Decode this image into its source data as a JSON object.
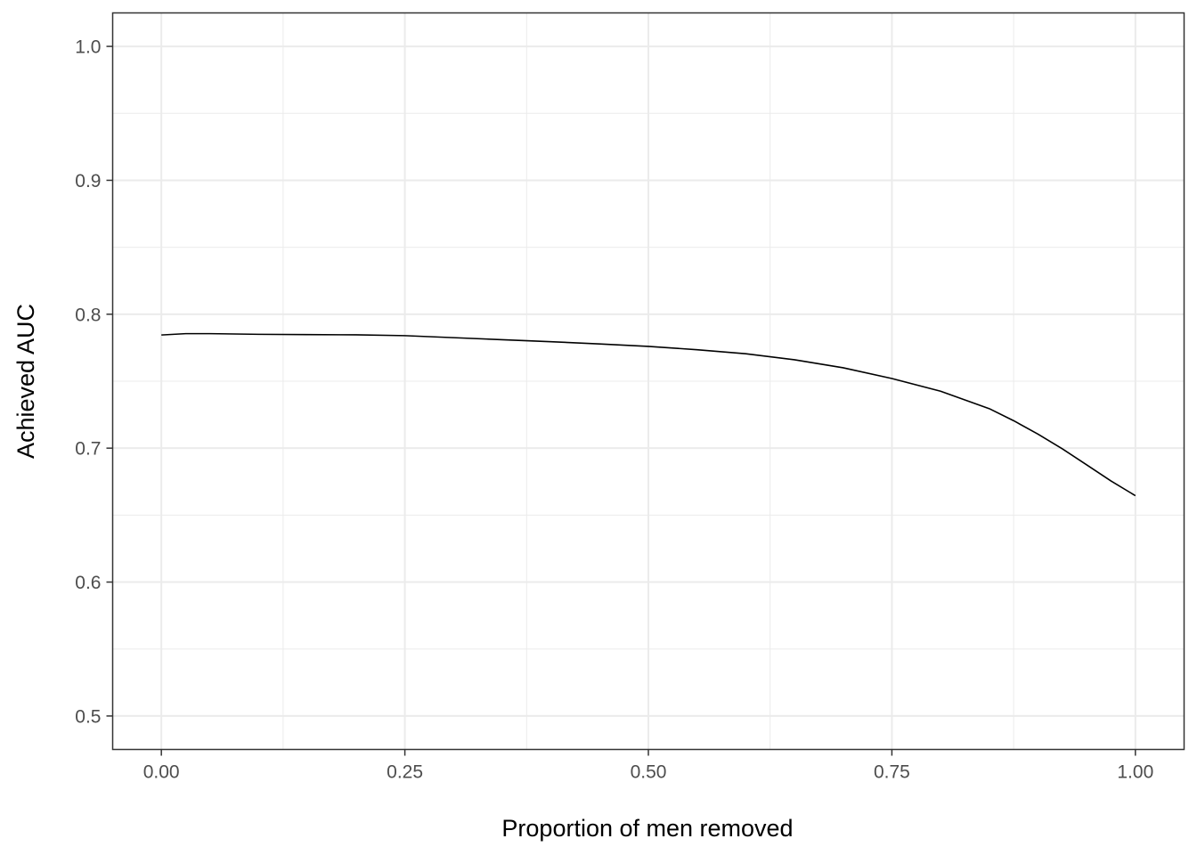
{
  "chart_data": {
    "type": "line",
    "title": "",
    "xlabel": "Proportion of men removed",
    "ylabel": "Achieved AUC",
    "xlim": [
      -0.05,
      1.05
    ],
    "ylim": [
      0.475,
      1.025
    ],
    "x_ticks": [
      0.0,
      0.25,
      0.5,
      0.75,
      1.0
    ],
    "x_tick_labels": [
      "0.00",
      "0.25",
      "0.50",
      "0.75",
      "1.00"
    ],
    "y_ticks": [
      0.5,
      0.6,
      0.7,
      0.8,
      0.9,
      1.0
    ],
    "y_tick_labels": [
      "0.5",
      "0.6",
      "0.7",
      "0.8",
      "0.9",
      "1.0"
    ],
    "grid": true,
    "legend": "none",
    "colors": {
      "line": "#000000",
      "grid": "#ebebeb",
      "panel_border": "#333333",
      "tick_mark": "#333333",
      "tick_label": "#4d4d4d"
    },
    "series": [
      {
        "x": [
          0.0,
          0.025,
          0.05,
          0.1,
          0.15,
          0.2,
          0.25,
          0.3,
          0.35,
          0.4,
          0.45,
          0.5,
          0.55,
          0.6,
          0.65,
          0.7,
          0.75,
          0.8,
          0.85,
          0.875,
          0.9,
          0.925,
          0.95,
          0.975,
          1.0
        ],
        "y": [
          0.7845,
          0.7855,
          0.7855,
          0.785,
          0.7848,
          0.7846,
          0.784,
          0.7825,
          0.781,
          0.7795,
          0.7778,
          0.776,
          0.7735,
          0.7705,
          0.766,
          0.76,
          0.752,
          0.7425,
          0.7295,
          0.7205,
          0.7105,
          0.6995,
          0.6875,
          0.6755,
          0.6645
        ]
      }
    ]
  }
}
